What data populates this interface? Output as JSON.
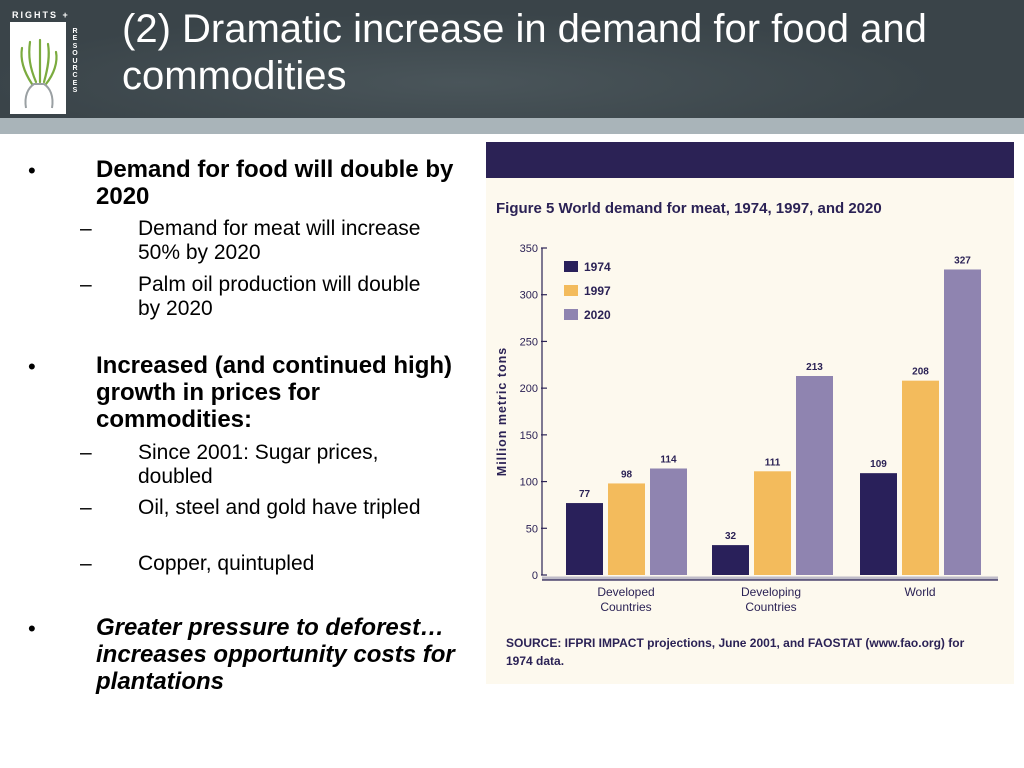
{
  "header": {
    "title": "(2) Dramatic increase in demand for food and commodities",
    "logo_top_text": "RIGHTS +",
    "logo_side_text": "RESOURCES"
  },
  "bullets": [
    {
      "text": "Demand for food will double by 2020",
      "style": "bold",
      "subitems": [
        "Demand for meat will increase 50% by 2020",
        "Palm oil production will double by 2020"
      ]
    },
    {
      "text": "Increased (and continued high) growth in prices for commodities:",
      "style": "bold",
      "subitems": [
        "Since 2001: Sugar prices, doubled",
        "Oil, steel and gold have tripled",
        "Copper, quintupled"
      ]
    },
    {
      "text": "Greater pressure to deforest…increases opportunity costs for plantations",
      "style": "bold-italic",
      "subitems": []
    }
  ],
  "chart_data": {
    "type": "bar",
    "title": "Figure 5  World demand for meat, 1974, 1997, and 2020",
    "ylabel": "Million metric tons",
    "xlabel": "",
    "ylim": [
      0,
      350
    ],
    "yticks": [
      0,
      50,
      100,
      150,
      200,
      250,
      300,
      350
    ],
    "categories": [
      "Developed Countries",
      "Developing Countries",
      "World"
    ],
    "category_lines": [
      [
        "Developed",
        "Countries"
      ],
      [
        "Developing",
        "Countries"
      ],
      [
        "World"
      ]
    ],
    "series": [
      {
        "name": "1974",
        "values": [
          77,
          32,
          109
        ],
        "color": "#29205a"
      },
      {
        "name": "1997",
        "values": [
          98,
          111,
          208
        ],
        "color": "#f3bb5c"
      },
      {
        "name": "2020",
        "values": [
          114,
          213,
          327
        ],
        "color": "#8f84b0"
      }
    ],
    "legend_position": "top-left",
    "grid": false,
    "source": "SOURCE: IFPRI IMPACT projections, June 2001, and FAOSTAT (www.fao.org) for 1974 data."
  },
  "colors": {
    "header_bg": "#3a4449",
    "figure_band": "#2b2255",
    "figure_bg": "#fdf9ee"
  }
}
